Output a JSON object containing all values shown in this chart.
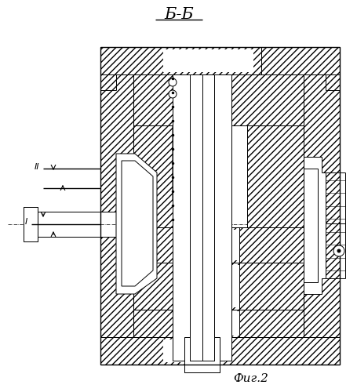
{
  "title": "Б-Б",
  "caption": "Фиг.2",
  "bg_color": "#ffffff",
  "line_color": "#000000",
  "title_fontsize": 15,
  "caption_fontsize": 11,
  "lw": 0.7,
  "hatch": "////"
}
